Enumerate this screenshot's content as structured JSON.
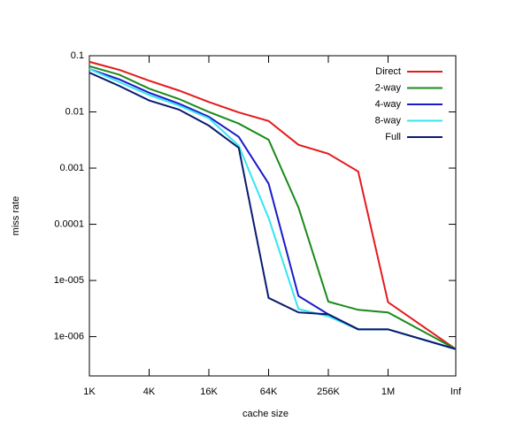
{
  "chart_data": {
    "type": "line",
    "x_label": "cache size",
    "y_label": "miss rate",
    "categories": [
      "1K",
      null,
      "4K",
      null,
      "16K",
      null,
      "64K",
      null,
      "256K",
      null,
      "1M",
      "Inf"
    ],
    "series": [
      {
        "name": "Direct",
        "color": "#e41a1c",
        "values": [
          0.078,
          0.056,
          0.036,
          0.024,
          0.015,
          0.0098,
          0.0069,
          0.0026,
          0.0018,
          0.00087,
          4.1e-06,
          6e-07
        ]
      },
      {
        "name": "2-way",
        "color": "#1a8a1a",
        "values": [
          0.065,
          0.046,
          0.026,
          0.017,
          0.01,
          0.0062,
          0.0032,
          0.0002,
          4.2e-06,
          3e-06,
          2.7e-06,
          6e-07
        ]
      },
      {
        "name": "4-way",
        "color": "#1a1acc",
        "values": [
          0.058,
          0.038,
          0.022,
          0.014,
          0.0082,
          0.0036,
          0.00053,
          5.3e-06,
          2.5e-06,
          1.35e-06,
          1.35e-06,
          6e-07
        ]
      },
      {
        "name": "8-way",
        "color": "#33e6f0",
        "values": [
          0.058,
          0.034,
          0.02,
          0.013,
          0.0077,
          0.0025,
          0.00013,
          3.1e-06,
          2.3e-06,
          1.35e-06,
          1.35e-06,
          6e-07
        ]
      },
      {
        "name": "Full",
        "color": "#0a1a6e",
        "values": [
          0.05,
          0.029,
          0.016,
          0.011,
          0.0057,
          0.0023,
          4.9e-06,
          2.7e-06,
          2.5e-06,
          1.35e-06,
          1.35e-06,
          6e-07
        ]
      }
    ],
    "ylog": true,
    "ylim": [
      2e-07,
      0.1
    ],
    "yticks": [
      0.1,
      0.01,
      0.001,
      0.0001,
      {
        "value": 1e-05,
        "label": "1e-005"
      },
      {
        "value": 1e-06,
        "label": "1e-006"
      }
    ],
    "legend": "top-right"
  }
}
